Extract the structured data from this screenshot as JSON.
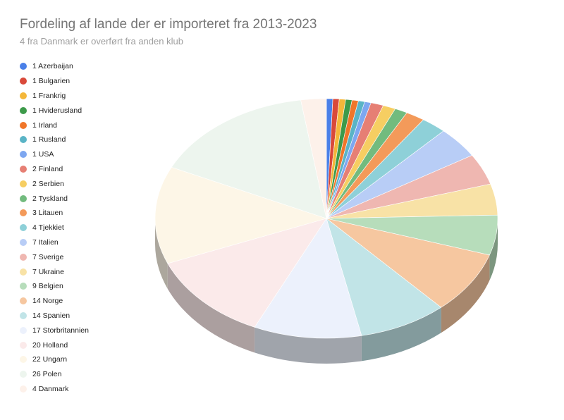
{
  "chart_data": {
    "type": "pie",
    "title": "Fordeling af lande der er importeret fra 2013-2023",
    "subtitle": "4 fra Danmark er overført fra anden klub",
    "legend_position": "left",
    "style": "3d",
    "slices": [
      {
        "label": "1 Azerbaijan",
        "value": 1,
        "color": "#4a80e8"
      },
      {
        "label": "1 Bulgarien",
        "value": 1,
        "color": "#d9493a"
      },
      {
        "label": "1 Frankrig",
        "value": 1,
        "color": "#f4b73a"
      },
      {
        "label": "1 Hviderusland",
        "value": 1,
        "color": "#3d9a4a"
      },
      {
        "label": "1 Irland",
        "value": 1,
        "color": "#f0762a"
      },
      {
        "label": "1 Rusland",
        "value": 1,
        "color": "#5ab4c6"
      },
      {
        "label": "1 USA",
        "value": 1,
        "color": "#7ea7f0"
      },
      {
        "label": "2 Finland",
        "value": 2,
        "color": "#e67f74"
      },
      {
        "label": "2 Serbien",
        "value": 2,
        "color": "#f6ce62"
      },
      {
        "label": "2 Tyskland",
        "value": 2,
        "color": "#72bb7e"
      },
      {
        "label": "3 Litauen",
        "value": 3,
        "color": "#f39a5a"
      },
      {
        "label": "4 Tjekkiet",
        "value": 4,
        "color": "#8ed0d8"
      },
      {
        "label": "7 Italien",
        "value": 7,
        "color": "#b8cdf6"
      },
      {
        "label": "7 Sverige",
        "value": 7,
        "color": "#efb7b1"
      },
      {
        "label": "7 Ukraine",
        "value": 7,
        "color": "#f8e2a6"
      },
      {
        "label": "9 Belgien",
        "value": 9,
        "color": "#b7ddbb"
      },
      {
        "label": "14 Norge",
        "value": 14,
        "color": "#f6c7a0"
      },
      {
        "label": "14 Spanien",
        "value": 14,
        "color": "#c1e4e7"
      },
      {
        "label": "17 Storbritannien",
        "value": 17,
        "color": "#ecf1fc"
      },
      {
        "label": "20 Holland",
        "value": 20,
        "color": "#fbeaea"
      },
      {
        "label": "22 Ungarn",
        "value": 22,
        "color": "#fdf6e7"
      },
      {
        "label": "26 Polen",
        "value": 26,
        "color": "#edf5ee"
      },
      {
        "label": "4 Danmark",
        "value": 4,
        "color": "#fdf1ea"
      }
    ]
  }
}
